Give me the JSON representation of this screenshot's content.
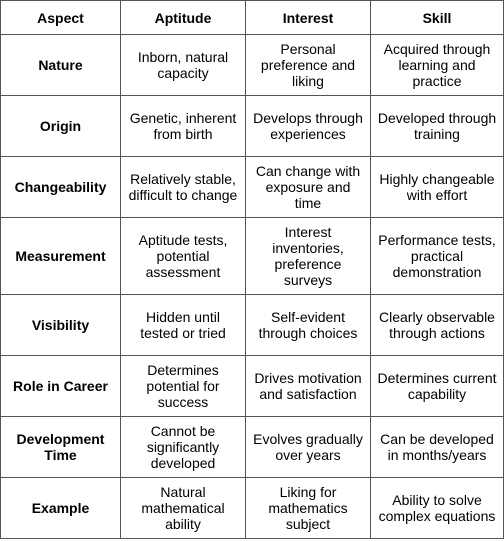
{
  "table": {
    "header": [
      "Aspect",
      "Aptitude",
      "Interest",
      "Skill"
    ],
    "rows": [
      [
        "Nature",
        "Inborn, natural capacity",
        "Personal preference and liking",
        "Acquired through learning and practice"
      ],
      [
        "Origin",
        "Genetic, inherent from birth",
        "Develops through experiences",
        "Developed through training"
      ],
      [
        "Changeability",
        "Relatively stable, difficult to change",
        "Can change with exposure and time",
        "Highly changeable with effort"
      ],
      [
        "Measurement",
        "Aptitude tests, potential assessment",
        "Interest inventories, preference surveys",
        "Performance tests, practical demonstration"
      ],
      [
        "Visibility",
        "Hidden until tested or tried",
        "Self-evident through choices",
        "Clearly observable through actions"
      ],
      [
        "Role in Career",
        "Determines potential for success",
        "Drives motivation and satisfaction",
        "Determines current capability"
      ],
      [
        "Development Time",
        "Cannot be significantly developed",
        "Evolves gradually over years",
        "Can be developed in months/years"
      ],
      [
        "Example",
        "Natural mathematical ability",
        "Liking for mathematics subject",
        "Ability to solve complex equations"
      ]
    ]
  }
}
